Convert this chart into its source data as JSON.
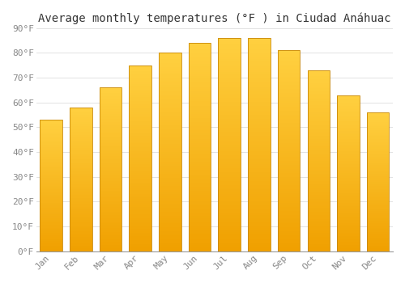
{
  "title": "Average monthly temperatures (°F ) in Ciudad Anáhuac",
  "months": [
    "Jan",
    "Feb",
    "Mar",
    "Apr",
    "May",
    "Jun",
    "Jul",
    "Aug",
    "Sep",
    "Oct",
    "Nov",
    "Dec"
  ],
  "values": [
    53,
    58,
    66,
    75,
    80,
    84,
    86,
    86,
    81,
    73,
    63,
    56
  ],
  "bar_color_top": "#FFD040",
  "bar_color_bottom": "#F0A000",
  "bar_edge_color": "#C8880A",
  "background_color": "#FFFFFF",
  "plot_bg_color": "#FFFFFF",
  "grid_color": "#DDDDDD",
  "text_color": "#888888",
  "title_color": "#333333",
  "ylim": [
    0,
    90
  ],
  "yticks": [
    0,
    10,
    20,
    30,
    40,
    50,
    60,
    70,
    80,
    90
  ],
  "title_fontsize": 10,
  "tick_fontsize": 8,
  "figsize": [
    5.0,
    3.5
  ],
  "dpi": 100,
  "bar_width": 0.75
}
